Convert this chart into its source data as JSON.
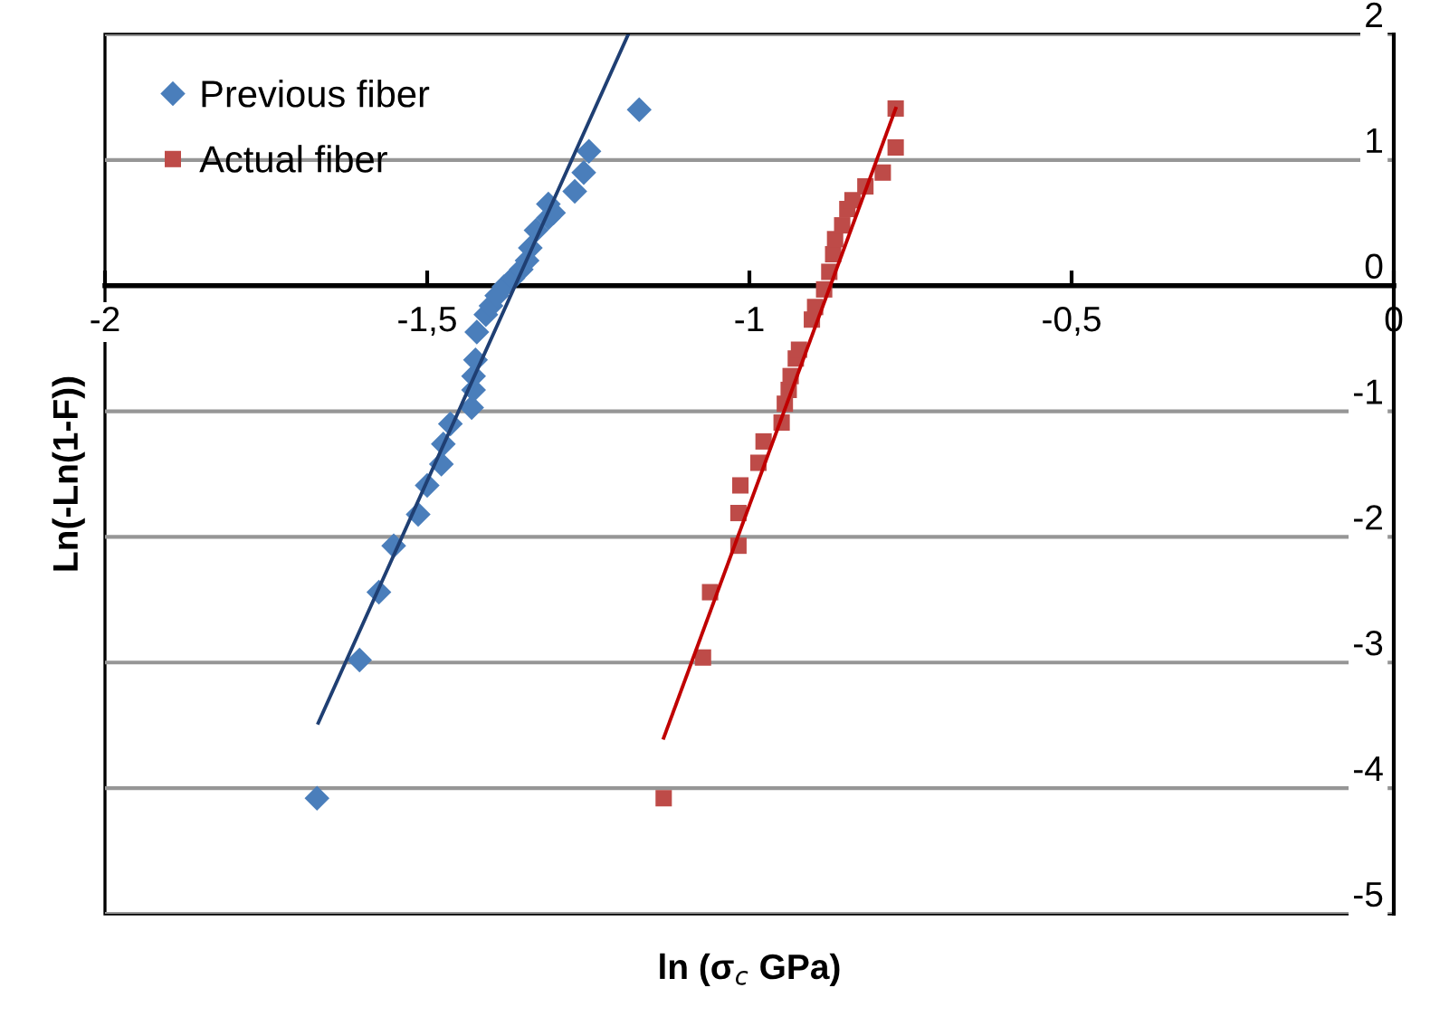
{
  "chart_data": {
    "type": "scatter",
    "xlabel": "ln (σ$_{c}$ GPa)",
    "ylabel": "Ln(-Ln(1-F))",
    "xlim": [
      -2,
      0
    ],
    "ylim": [
      -5,
      2
    ],
    "xticks": [
      -2,
      {
        "value": -1.5,
        "label": "-1,5"
      },
      -1,
      {
        "value": -0.5,
        "label": "-0,5"
      },
      0
    ],
    "yticks": [
      -5,
      -4,
      -3,
      -2,
      -1,
      0,
      1,
      2
    ],
    "grid": "y",
    "legend": "top left",
    "series": [
      {
        "name": "Previous fiber",
        "marker": "diamond",
        "color": "#4a7ebb",
        "x": [
          -1.671,
          -1.605,
          -1.575,
          -1.552,
          -1.514,
          -1.5,
          -1.478,
          -1.475,
          -1.464,
          -1.431,
          -1.428,
          -1.428,
          -1.425,
          -1.423,
          -1.409,
          -1.401,
          -1.392,
          -1.381,
          -1.367,
          -1.354,
          -1.345,
          -1.34,
          -1.331,
          -1.312,
          -1.312,
          -1.304,
          -1.271,
          -1.257,
          -1.249,
          -1.171
        ],
        "values": [
          -4.08,
          -2.98,
          -2.44,
          -2.07,
          -1.82,
          -1.59,
          -1.42,
          -1.26,
          -1.1,
          -0.97,
          -0.83,
          -0.72,
          -0.59,
          -0.37,
          -0.23,
          -0.16,
          -0.08,
          -0.01,
          0.06,
          0.13,
          0.2,
          0.3,
          0.44,
          0.54,
          0.65,
          0.58,
          0.75,
          0.9,
          1.07,
          1.4
        ]
      },
      {
        "name": "Actual fiber",
        "marker": "square",
        "color": "#be4b48",
        "x": [
          -1.133,
          -1.072,
          -1.061,
          -1.017,
          -1.017,
          -1.014,
          -0.986,
          -0.978,
          -0.95,
          -0.945,
          -0.939,
          -0.936,
          -0.928,
          -0.923,
          -0.903,
          -0.898,
          -0.884,
          -0.876,
          -0.87,
          -0.867,
          -0.856,
          -0.848,
          -0.84,
          -0.82,
          -0.793,
          -0.773,
          -0.773
        ],
        "values": [
          -4.08,
          -2.96,
          -2.44,
          -2.07,
          -1.81,
          -1.59,
          -1.41,
          -1.24,
          -1.09,
          -0.94,
          -0.83,
          -0.72,
          -0.58,
          -0.51,
          -0.27,
          -0.17,
          -0.03,
          0.11,
          0.25,
          0.37,
          0.48,
          0.61,
          0.68,
          0.79,
          0.9,
          1.1,
          1.41
        ]
      },
      {
        "type": "line",
        "color": "#1f3f73",
        "x": [
          -1.669,
          -1.188
        ],
        "values": [
          -3.48,
          2
        ]
      },
      {
        "type": "line",
        "color": "#c00000",
        "x": [
          -1.133,
          -0.773
        ],
        "values": [
          -3.6,
          1.41
        ]
      }
    ]
  }
}
